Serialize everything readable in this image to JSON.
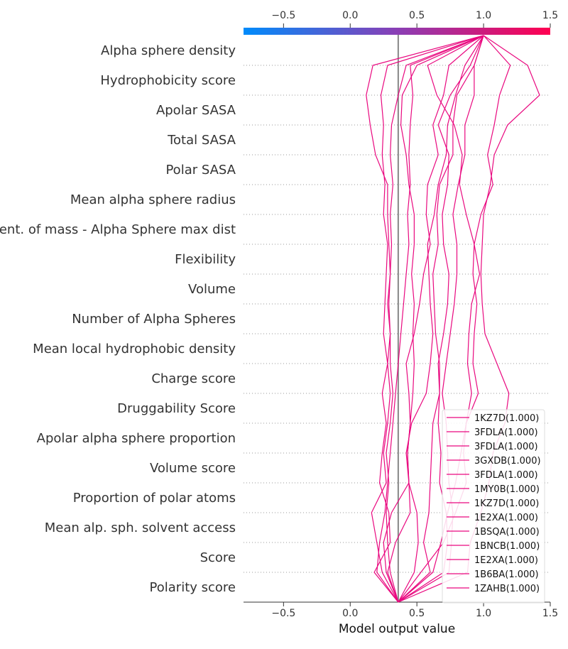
{
  "chart_data": {
    "type": "line",
    "title": "",
    "xlabel": "Model output value",
    "ylabel": "",
    "xlim": [
      -0.8,
      1.5
    ],
    "xticks": [
      "−0.5",
      "0.0",
      "0.5",
      "1.0",
      "1.5"
    ],
    "xtick_values": [
      -0.5,
      0.0,
      0.5,
      1.0,
      1.5
    ],
    "base_value": 0.36,
    "colorbar": {
      "from": "#008bfb",
      "mid": "#8a3fb5",
      "to": "#ff0051"
    },
    "line_color": "#e9087f",
    "grid": "dotted horizontal",
    "legend_position": "lower-right",
    "features": [
      "Alpha sphere density",
      "Hydrophobicity score",
      "Apolar SASA",
      "Total SASA",
      "Polar SASA",
      "Mean alpha sphere radius",
      "Cent. of mass - Alpha Sphere max dist",
      "Flexibility",
      "Volume",
      "Number of Alpha Spheres",
      "Mean local hydrophobic density",
      "Charge score",
      "Druggability Score",
      "Apolar alpha sphere proportion",
      "Volume score",
      "Proportion of polar atoms",
      "Mean alp. sph. solvent access",
      "Score",
      "Polarity score"
    ],
    "series": [
      {
        "name": "1KZ7D(1.000)",
        "values": [
          0.36,
          0.18,
          0.3,
          0.29,
          0.22,
          0.24,
          0.27,
          0.24,
          0.28,
          0.25,
          0.26,
          0.27,
          0.28,
          0.25,
          0.26,
          0.24,
          0.25,
          0.23,
          0.28,
          1.0
        ]
      },
      {
        "name": "3FDLA(1.000)",
        "values": [
          0.36,
          0.24,
          0.2,
          0.16,
          0.27,
          0.25,
          0.28,
          0.3,
          0.28,
          0.3,
          0.28,
          0.3,
          0.29,
          0.28,
          0.28,
          0.19,
          0.15,
          0.12,
          0.17,
          1.0
        ]
      },
      {
        "name": "3FDLA(1.000)",
        "values": [
          0.36,
          0.3,
          0.28,
          0.27,
          0.29,
          0.27,
          0.3,
          0.32,
          0.3,
          0.3,
          0.29,
          0.3,
          0.31,
          0.3,
          0.32,
          0.3,
          0.31,
          0.36,
          0.42,
          1.0
        ]
      },
      {
        "name": "3GXDB(1.000)",
        "values": [
          0.36,
          0.2,
          0.22,
          0.26,
          0.28,
          0.3,
          0.32,
          0.34,
          0.36,
          0.38,
          0.4,
          0.42,
          0.44,
          0.43,
          0.45,
          0.44,
          0.45,
          0.47,
          0.45,
          1.0
        ]
      },
      {
        "name": "3FDLA(1.000)",
        "values": [
          0.36,
          0.27,
          0.25,
          0.31,
          0.44,
          0.43,
          0.45,
          0.47,
          0.48,
          0.47,
          0.48,
          0.46,
          0.48,
          0.48,
          0.44,
          0.42,
          0.38,
          0.39,
          0.5,
          1.0
        ]
      },
      {
        "name": "1MY0B(1.000)",
        "values": [
          0.36,
          0.28,
          0.34,
          0.45,
          0.44,
          0.43,
          0.45,
          0.44,
          0.42,
          0.48,
          0.52,
          0.55,
          0.6,
          0.57,
          0.58,
          0.66,
          0.62,
          0.7,
          0.74,
          1.0
        ]
      },
      {
        "name": "1KZ7D(1.000)",
        "values": [
          0.36,
          0.48,
          0.51,
          0.5,
          0.44,
          0.42,
          0.46,
          0.57,
          0.6,
          0.62,
          0.6,
          0.59,
          0.58,
          0.63,
          0.66,
          0.72,
          0.73,
          0.79,
          0.86,
          1.0
        ]
      },
      {
        "name": "1E2XA(1.000)",
        "values": [
          0.36,
          0.6,
          0.55,
          0.59,
          0.6,
          0.61,
          0.62,
          0.67,
          0.67,
          0.64,
          0.63,
          0.62,
          0.66,
          0.65,
          0.67,
          0.77,
          0.77,
          0.8,
          0.93,
          1.0
        ]
      },
      {
        "name": "1BSQA(1.000)",
        "values": [
          0.36,
          0.7,
          0.73,
          0.72,
          0.67,
          0.68,
          0.66,
          0.67,
          0.66,
          0.7,
          0.73,
          0.74,
          0.7,
          0.69,
          0.73,
          0.74,
          0.66,
          0.75,
          0.9,
          1.0
        ]
      },
      {
        "name": "1BNCB(1.000)",
        "values": [
          0.36,
          0.53,
          0.7,
          0.79,
          0.87,
          0.85,
          0.87,
          0.91,
          0.88,
          0.89,
          0.91,
          0.97,
          0.93,
          0.98,
          1.07,
          1.03,
          1.08,
          1.12,
          1.2,
          1.0
        ]
      },
      {
        "name": "1E2XA(1.000)",
        "values": [
          0.36,
          0.62,
          0.68,
          0.73,
          0.79,
          0.83,
          0.87,
          0.96,
          0.92,
          0.93,
          0.95,
          0.92,
          0.93,
          0.87,
          0.82,
          0.84,
          0.78,
          0.65,
          0.58,
          1.0
        ]
      },
      {
        "name": "1B6BA(1.000)",
        "values": [
          0.36,
          0.88,
          0.9,
          0.98,
          1.04,
          1.07,
          1.16,
          1.19,
          1.1,
          1.01,
          0.99,
          0.98,
          0.99,
          1.0,
          1.05,
          1.08,
          1.18,
          1.42,
          1.33,
          1.0
        ]
      },
      {
        "name": "1ZAHB(1.000)",
        "values": [
          0.36,
          0.74,
          0.76,
          0.77,
          0.74,
          0.73,
          0.72,
          0.69,
          0.72,
          0.75,
          0.78,
          0.8,
          0.8,
          0.77,
          0.81,
          0.86,
          0.86,
          0.93,
          0.93,
          1.0
        ]
      }
    ]
  }
}
